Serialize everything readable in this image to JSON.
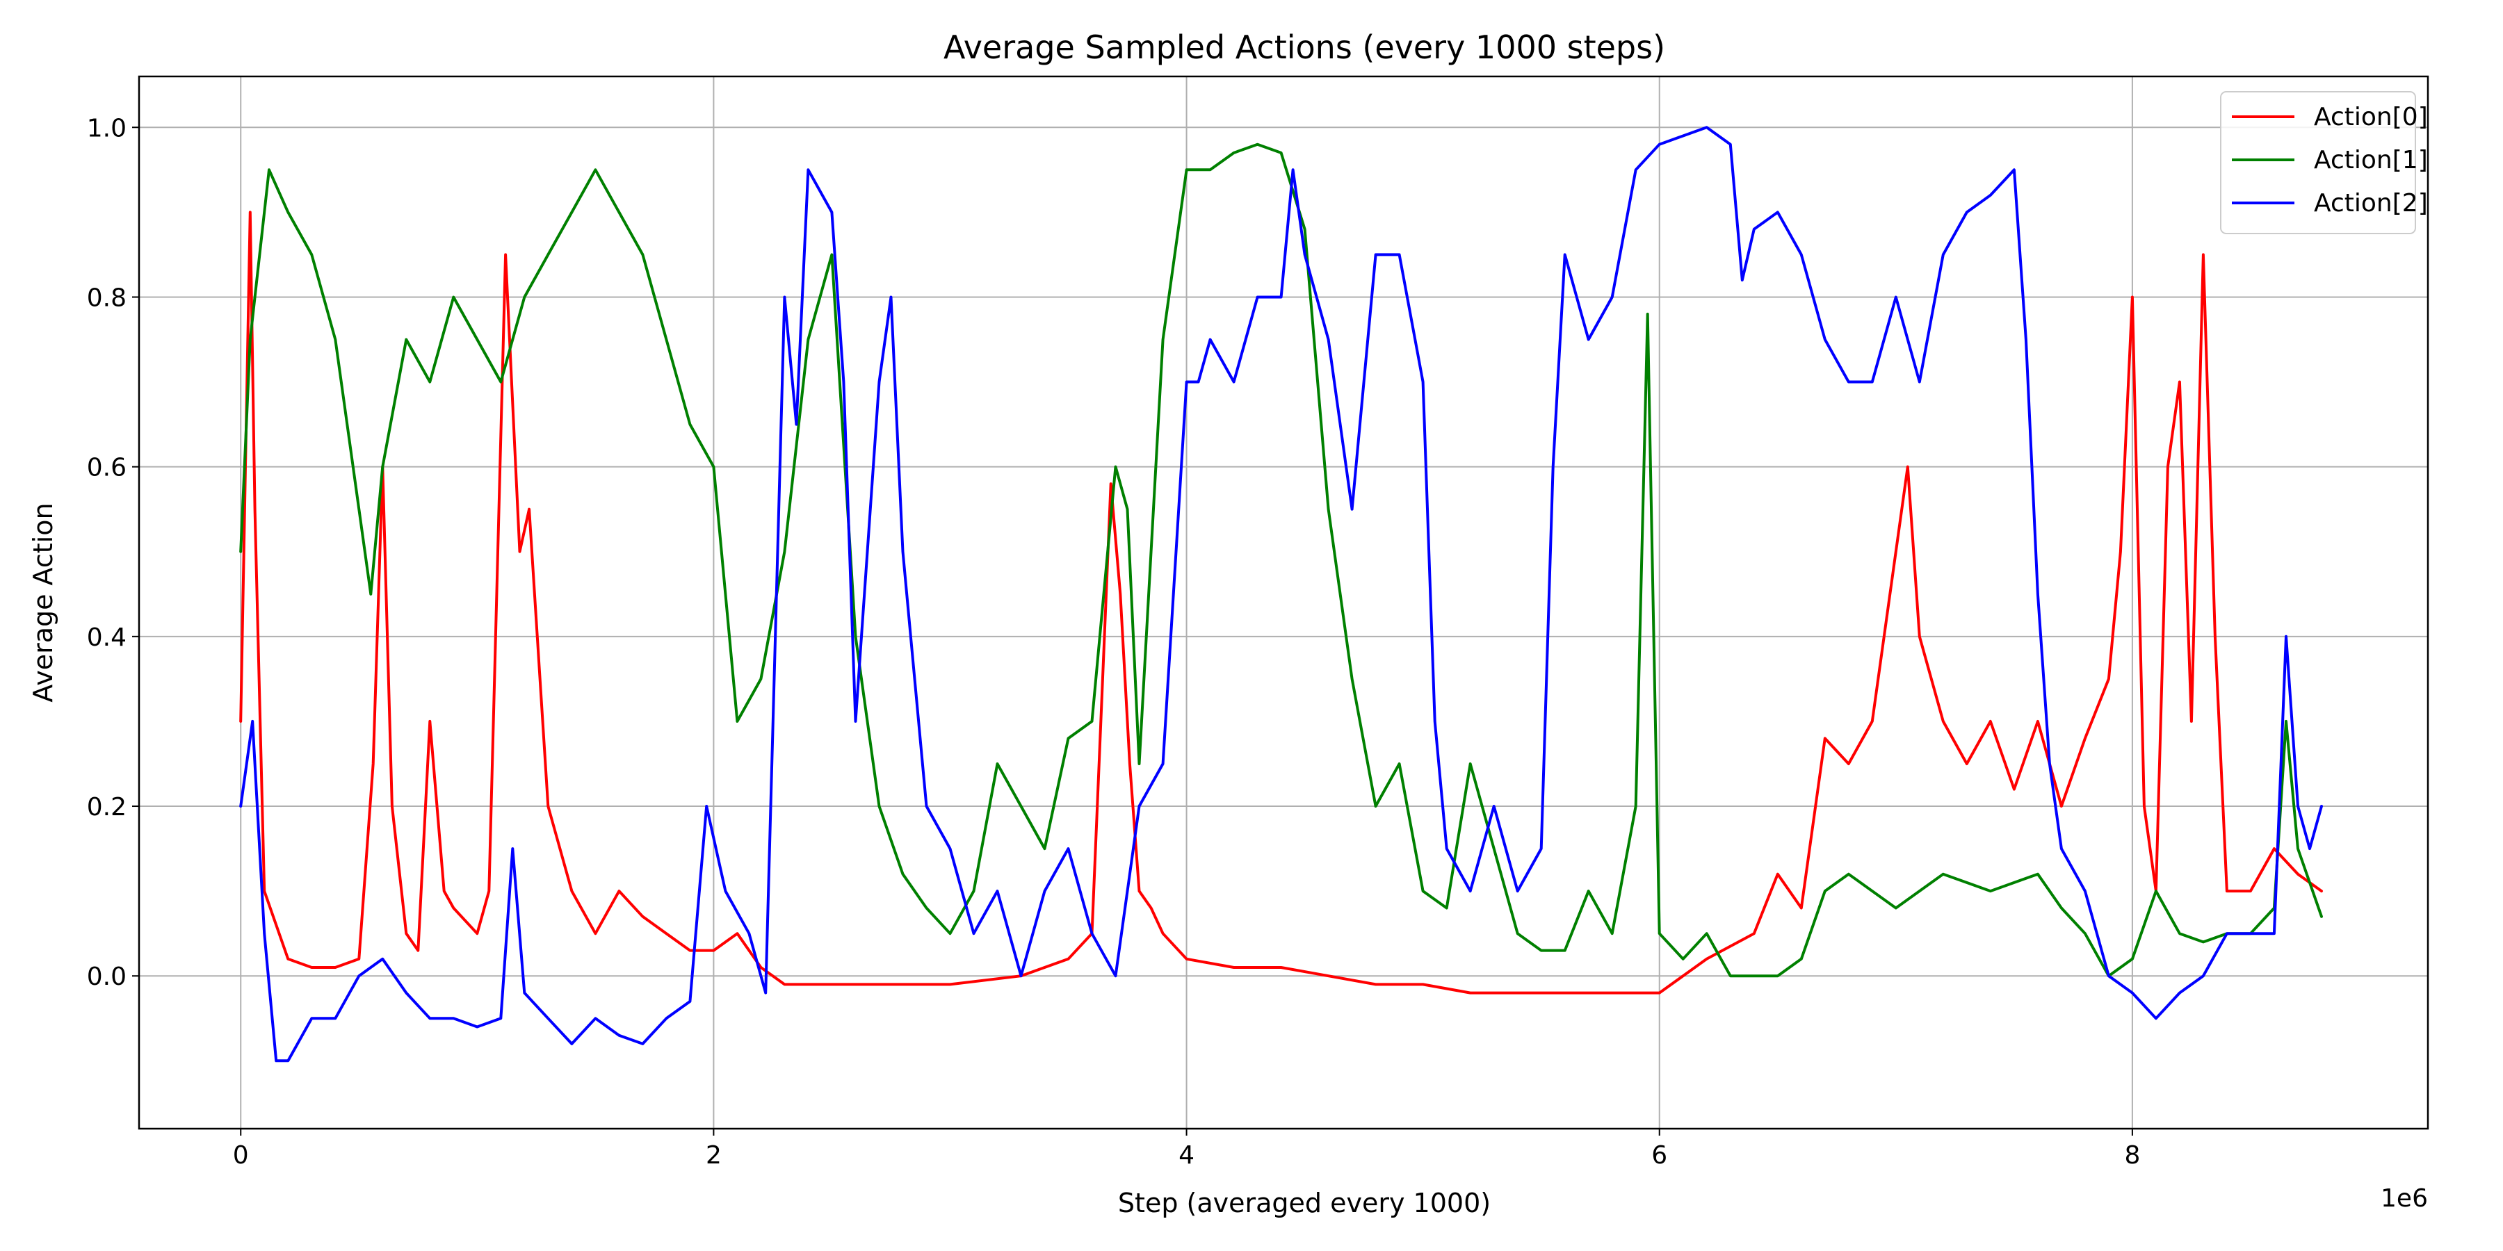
{
  "chart_data": {
    "type": "line",
    "title": "Average Sampled Actions (every 1000 steps)",
    "xlabel": "Step (averaged every 1000)",
    "ylabel": "Average Action",
    "x_offset_text": "1e6",
    "xlim": [
      -0.43,
      9.25
    ],
    "ylim": [
      -0.18,
      1.06
    ],
    "x_ticks": [
      0,
      2,
      4,
      6,
      8
    ],
    "y_ticks": [
      0.0,
      0.2,
      0.4,
      0.6,
      0.8,
      1.0
    ],
    "y_tick_labels": [
      "0.0",
      "0.2",
      "0.4",
      "0.6",
      "0.8",
      "1.0"
    ],
    "grid": true,
    "legend_position": "top-right",
    "series": [
      {
        "name": "Action[0]",
        "color": "#ff0000",
        "x": [
          0.0,
          0.04,
          0.06,
          0.1,
          0.2,
          0.3,
          0.4,
          0.5,
          0.56,
          0.6,
          0.64,
          0.7,
          0.75,
          0.8,
          0.86,
          0.9,
          1.0,
          1.05,
          1.12,
          1.18,
          1.22,
          1.3,
          1.4,
          1.5,
          1.6,
          1.7,
          1.8,
          1.9,
          2.0,
          2.1,
          2.2,
          2.3,
          2.6,
          3.0,
          3.3,
          3.5,
          3.6,
          3.68,
          3.72,
          3.76,
          3.8,
          3.85,
          3.9,
          4.0,
          4.2,
          4.4,
          4.6,
          4.8,
          5.0,
          5.2,
          5.4,
          5.6,
          5.8,
          6.0,
          6.2,
          6.4,
          6.5,
          6.6,
          6.7,
          6.8,
          6.9,
          7.0,
          7.05,
          7.1,
          7.2,
          7.3,
          7.4,
          7.5,
          7.6,
          7.7,
          7.8,
          7.9,
          7.95,
          8.0,
          8.05,
          8.1,
          8.15,
          8.2,
          8.25,
          8.3,
          8.35,
          8.4,
          8.5,
          8.6,
          8.7,
          8.8
        ],
        "y": [
          0.3,
          0.9,
          0.55,
          0.1,
          0.02,
          0.01,
          0.01,
          0.02,
          0.25,
          0.6,
          0.2,
          0.05,
          0.03,
          0.3,
          0.1,
          0.08,
          0.05,
          0.1,
          0.85,
          0.5,
          0.55,
          0.2,
          0.1,
          0.05,
          0.1,
          0.07,
          0.05,
          0.03,
          0.03,
          0.05,
          0.01,
          -0.01,
          -0.01,
          -0.01,
          0.0,
          0.02,
          0.05,
          0.58,
          0.45,
          0.25,
          0.1,
          0.08,
          0.05,
          0.02,
          0.01,
          0.01,
          0.0,
          -0.01,
          -0.01,
          -0.02,
          -0.02,
          -0.02,
          -0.02,
          -0.02,
          0.02,
          0.05,
          0.12,
          0.08,
          0.28,
          0.25,
          0.3,
          0.5,
          0.6,
          0.4,
          0.3,
          0.25,
          0.3,
          0.22,
          0.3,
          0.2,
          0.28,
          0.35,
          0.5,
          0.8,
          0.2,
          0.1,
          0.6,
          0.7,
          0.3,
          0.85,
          0.4,
          0.1,
          0.1,
          0.15,
          0.12,
          0.1
        ]
      },
      {
        "name": "Action[1]",
        "color": "#008000",
        "x": [
          0.0,
          0.04,
          0.08,
          0.12,
          0.2,
          0.3,
          0.4,
          0.5,
          0.55,
          0.6,
          0.7,
          0.8,
          0.9,
          1.0,
          1.1,
          1.2,
          1.3,
          1.4,
          1.5,
          1.6,
          1.7,
          1.8,
          1.9,
          2.0,
          2.05,
          2.1,
          2.2,
          2.3,
          2.4,
          2.5,
          2.6,
          2.7,
          2.8,
          2.9,
          3.0,
          3.1,
          3.2,
          3.3,
          3.4,
          3.5,
          3.6,
          3.7,
          3.75,
          3.8,
          3.9,
          4.0,
          4.1,
          4.2,
          4.3,
          4.4,
          4.5,
          4.6,
          4.7,
          4.8,
          4.9,
          5.0,
          5.1,
          5.2,
          5.3,
          5.4,
          5.5,
          5.6,
          5.7,
          5.8,
          5.9,
          5.95,
          6.0,
          6.1,
          6.2,
          6.3,
          6.4,
          6.5,
          6.6,
          6.7,
          6.8,
          7.0,
          7.2,
          7.4,
          7.6,
          7.7,
          7.8,
          7.9,
          8.0,
          8.1,
          8.2,
          8.3,
          8.4,
          8.5,
          8.6,
          8.65,
          8.7,
          8.8
        ],
        "y": [
          0.5,
          0.75,
          0.85,
          0.95,
          0.9,
          0.85,
          0.75,
          0.55,
          0.45,
          0.6,
          0.75,
          0.7,
          0.8,
          0.75,
          0.7,
          0.8,
          0.85,
          0.9,
          0.95,
          0.9,
          0.85,
          0.75,
          0.65,
          0.6,
          0.45,
          0.3,
          0.35,
          0.5,
          0.75,
          0.85,
          0.4,
          0.2,
          0.12,
          0.08,
          0.05,
          0.1,
          0.25,
          0.2,
          0.15,
          0.28,
          0.3,
          0.6,
          0.55,
          0.25,
          0.75,
          0.95,
          0.95,
          0.97,
          0.98,
          0.97,
          0.88,
          0.55,
          0.35,
          0.2,
          0.25,
          0.1,
          0.08,
          0.25,
          0.15,
          0.05,
          0.03,
          0.03,
          0.1,
          0.05,
          0.2,
          0.78,
          0.05,
          0.02,
          0.05,
          0.0,
          0.0,
          0.0,
          0.02,
          0.1,
          0.12,
          0.08,
          0.12,
          0.1,
          0.12,
          0.08,
          0.05,
          0.0,
          0.02,
          0.1,
          0.05,
          0.04,
          0.05,
          0.05,
          0.08,
          0.3,
          0.15,
          0.07
        ]
      },
      {
        "name": "Action[2]",
        "color": "#0000ff",
        "x": [
          0.0,
          0.05,
          0.1,
          0.15,
          0.2,
          0.3,
          0.4,
          0.5,
          0.6,
          0.7,
          0.8,
          0.9,
          1.0,
          1.1,
          1.15,
          1.2,
          1.3,
          1.4,
          1.5,
          1.6,
          1.7,
          1.8,
          1.9,
          1.97,
          2.05,
          2.15,
          2.22,
          2.3,
          2.35,
          2.4,
          2.5,
          2.55,
          2.6,
          2.7,
          2.75,
          2.8,
          2.9,
          3.0,
          3.1,
          3.2,
          3.3,
          3.4,
          3.5,
          3.6,
          3.7,
          3.8,
          3.9,
          4.0,
          4.05,
          4.1,
          4.2,
          4.3,
          4.4,
          4.45,
          4.5,
          4.6,
          4.7,
          4.8,
          4.9,
          5.0,
          5.05,
          5.1,
          5.2,
          5.3,
          5.4,
          5.5,
          5.55,
          5.6,
          5.7,
          5.8,
          5.9,
          6.0,
          6.1,
          6.2,
          6.3,
          6.35,
          6.4,
          6.5,
          6.6,
          6.7,
          6.8,
          6.9,
          7.0,
          7.1,
          7.2,
          7.3,
          7.4,
          7.5,
          7.55,
          7.6,
          7.65,
          7.7,
          7.8,
          7.9,
          8.0,
          8.1,
          8.2,
          8.3,
          8.4,
          8.5,
          8.6,
          8.65,
          8.7,
          8.75,
          8.8
        ],
        "y": [
          0.2,
          0.3,
          0.05,
          -0.1,
          -0.1,
          -0.05,
          -0.05,
          0.0,
          0.02,
          -0.02,
          -0.05,
          -0.05,
          -0.06,
          -0.05,
          0.15,
          -0.02,
          -0.05,
          -0.08,
          -0.05,
          -0.07,
          -0.08,
          -0.05,
          -0.03,
          0.2,
          0.1,
          0.05,
          -0.02,
          0.8,
          0.65,
          0.95,
          0.9,
          0.7,
          0.3,
          0.7,
          0.8,
          0.5,
          0.2,
          0.15,
          0.05,
          0.1,
          0.0,
          0.1,
          0.15,
          0.05,
          0.0,
          0.2,
          0.25,
          0.7,
          0.7,
          0.75,
          0.7,
          0.8,
          0.8,
          0.95,
          0.85,
          0.75,
          0.55,
          0.85,
          0.85,
          0.7,
          0.3,
          0.15,
          0.1,
          0.2,
          0.1,
          0.15,
          0.6,
          0.85,
          0.75,
          0.8,
          0.95,
          0.98,
          0.99,
          1.0,
          0.98,
          0.82,
          0.88,
          0.9,
          0.85,
          0.75,
          0.7,
          0.7,
          0.8,
          0.7,
          0.85,
          0.9,
          0.92,
          0.95,
          0.75,
          0.45,
          0.25,
          0.15,
          0.1,
          0.0,
          -0.02,
          -0.05,
          -0.02,
          0.0,
          0.05,
          0.05,
          0.05,
          0.4,
          0.2,
          0.15,
          0.2
        ]
      }
    ]
  }
}
